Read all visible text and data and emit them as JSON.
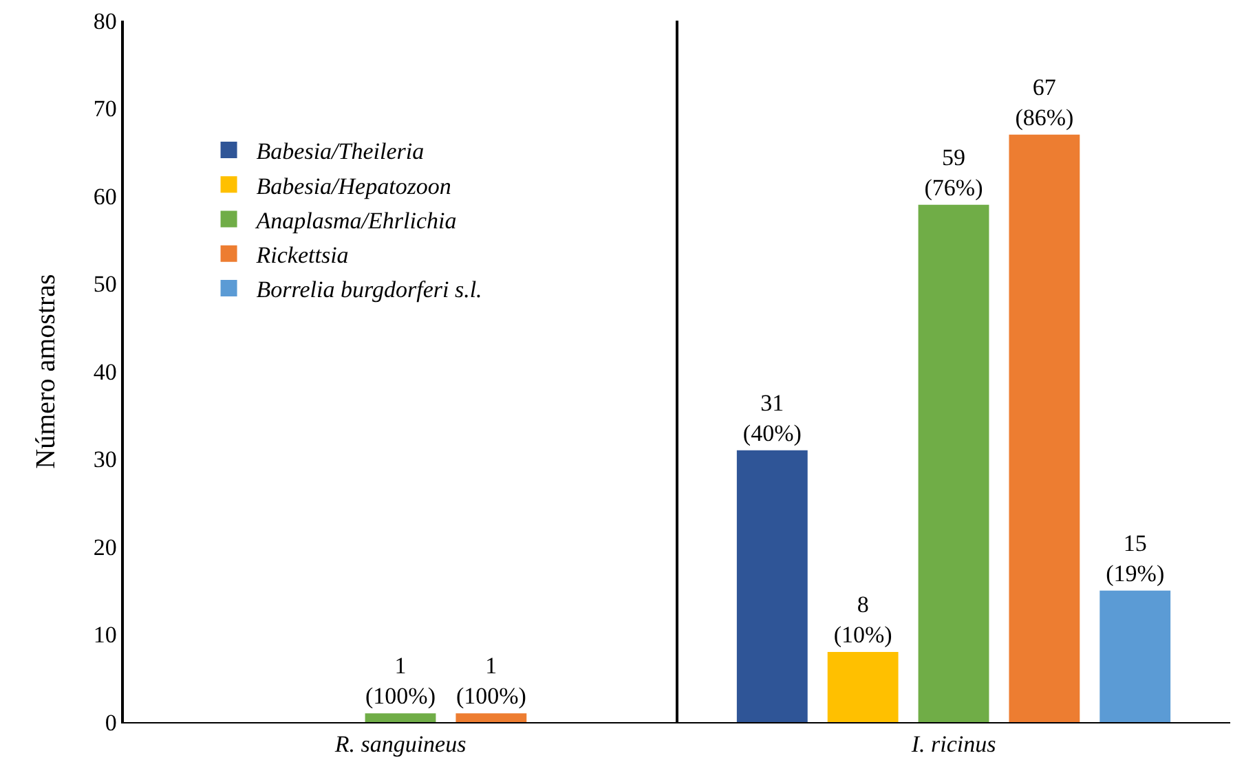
{
  "chart_data": {
    "type": "bar",
    "ylabel": "Número amostras",
    "categories": [
      "R. sanguineus",
      "I. ricinus"
    ],
    "series": [
      {
        "name": "Babesia/Theileria",
        "color": "#2f5597",
        "values": [
          null,
          31
        ],
        "value_labels": [
          null,
          "31\n(40%)"
        ]
      },
      {
        "name": "Babesia/Hepatozoon",
        "color": "#ffc000",
        "values": [
          null,
          8
        ],
        "value_labels": [
          null,
          "8\n(10%)"
        ]
      },
      {
        "name": "Anaplasma/Ehrlichia",
        "color": "#70ad47",
        "values": [
          1,
          59
        ],
        "value_labels": [
          "1\n(100%)",
          "59\n(76%)"
        ]
      },
      {
        "name": "Rickettsia",
        "color": "#ed7d31",
        "values": [
          1,
          67
        ],
        "value_labels": [
          "1\n(100%)",
          "67\n(86%)"
        ]
      },
      {
        "name": "Borrelia burgdorferi s.l.",
        "color": "#5b9bd5",
        "values": [
          null,
          15
        ],
        "value_labels": [
          null,
          "15\n(19%)"
        ]
      }
    ],
    "ylim": [
      0,
      80
    ],
    "yticks": [
      0,
      10,
      20,
      30,
      40,
      50,
      60,
      70,
      80
    ],
    "grid": "x",
    "legend": "top left"
  }
}
